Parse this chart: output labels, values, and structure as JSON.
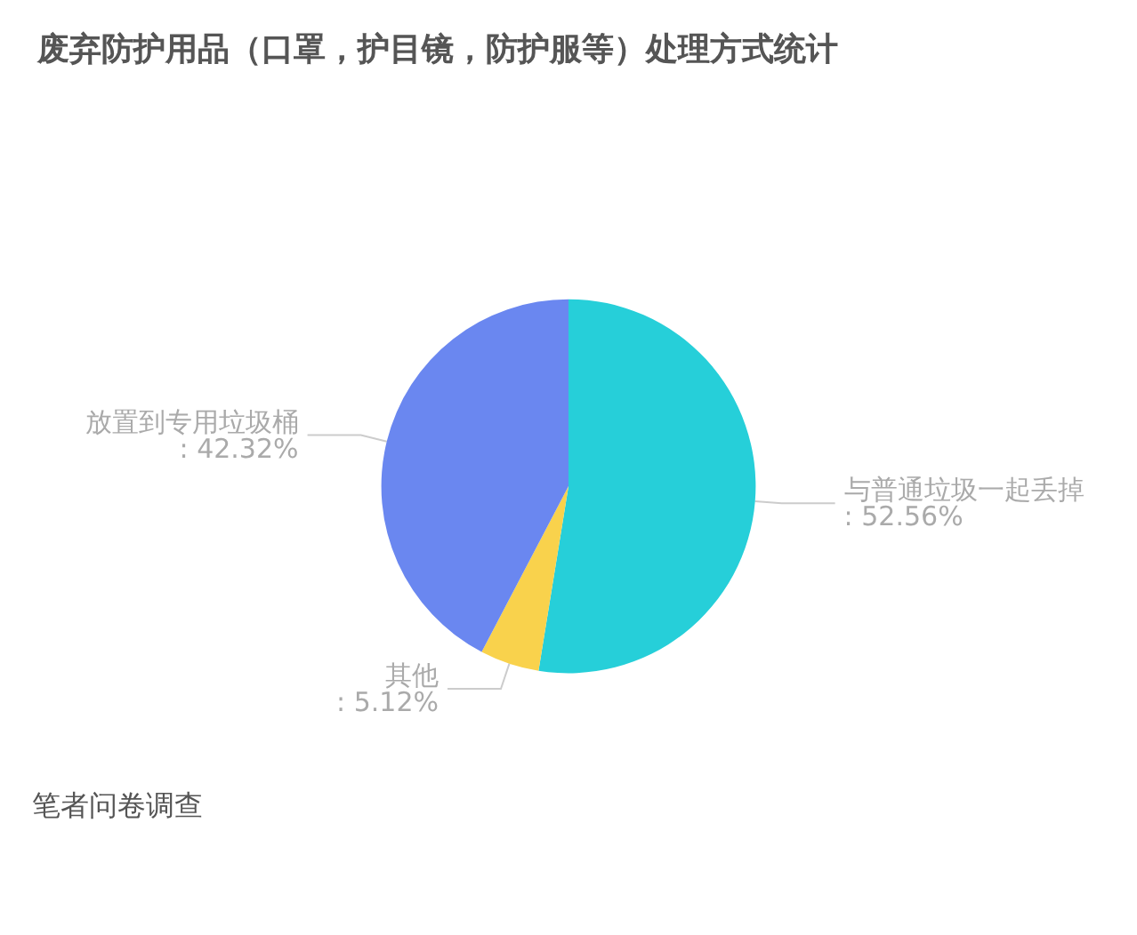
{
  "chart_data": {
    "type": "pie",
    "title": "废弃防护用品（口罩，护目镜，防护服等）处理方式统计",
    "categories": [
      "与普通垃圾一起丢掉",
      "其他",
      "放置到专用垃圾桶"
    ],
    "values": [
      52.56,
      5.12,
      42.32
    ],
    "colors": [
      "#26cfd9",
      "#f9d24c",
      "#6a87f0"
    ],
    "value_labels": [
      ": 52.56%",
      ": 5.12%",
      ": 42.32%"
    ],
    "legend": false,
    "annotations": [
      "笔者问卷调查"
    ]
  }
}
